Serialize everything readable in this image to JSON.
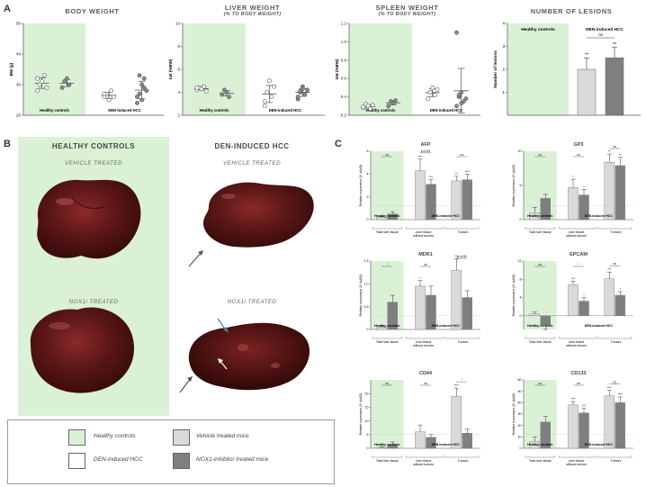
{
  "panels": {
    "a_label": "A",
    "b_label": "B",
    "c_label": "C"
  },
  "panel_a": {
    "body": {
      "title": "BODY WEIGHT",
      "ylabel": "BW (g)",
      "yticks": [
        "20",
        "30",
        "40",
        "50"
      ],
      "group1": "Healthy controls",
      "group2": "DEN-induced HCC"
    },
    "liver": {
      "title": "LIVER WEIGHT",
      "subtitle": "(% TO BODY WEIGHT)",
      "ylabel": "LW (%BW)",
      "yticks": [
        "2",
        "4",
        "6",
        "8",
        "10"
      ],
      "group1": "Healthy controls",
      "group2": "DEN-induced HCC"
    },
    "spleen": {
      "title": "SPLEEN WEIGHT",
      "subtitle": "(% TO BODY WEIGHT)",
      "ylabel": "SW (%BW)",
      "yticks": [
        "0.2",
        "0.4",
        "0.6",
        "0.8",
        "1.0",
        "1.2"
      ],
      "group1": "Healthy controls",
      "group2": "DEN-induced HCC"
    },
    "lesions": {
      "title": "NUMBER OF LESIONS",
      "ylabel": "Number of lesions",
      "yticks": [
        "1",
        "2",
        "3",
        "4"
      ],
      "group1": "Healthy controls",
      "group2": "DEN-induced HCC",
      "ns": "ns",
      "star": "**"
    }
  },
  "panel_b": {
    "col1_title": "HEALTHY CONTROLS",
    "col2_title": "DEN-INDUCED HCC",
    "vehicle": "VEHICLE TREATED",
    "noxi": "NOX1i TREATED"
  },
  "legend": {
    "healthy": "Healthy controls",
    "den": "DEN-induced HCC",
    "vehicle": "Vehicle treated mice",
    "nox": "NOX1-inhibitor treated mice",
    "colors": {
      "healthy": "#daf1d6",
      "den": "#ffffff",
      "vehicle": "#d9d9d9",
      "nox": "#7f7f7f"
    }
  },
  "panel_c": {
    "ylabel": "Relative expression (2^-ΔΔCt)",
    "hc_label": "Healthy controls",
    "den_label": "DEN-induced HCC",
    "x1": "Total liver tissue",
    "x2a": "Liver tissue",
    "x2b": "without tumors",
    "x3": "Tumors"
  },
  "chart_data": [
    {
      "type": "scatter",
      "title": "BODY WEIGHT",
      "ylabel": "BW (g)",
      "ylim": [
        20,
        50
      ],
      "series": [
        {
          "name": "Healthy controls vehicle",
          "values": [
            28,
            30,
            31,
            33,
            29,
            32
          ]
        },
        {
          "name": "Healthy controls NOX1i",
          "values": [
            29,
            31,
            32,
            30
          ]
        },
        {
          "name": "DEN-induced HCC vehicle",
          "values": [
            26,
            27,
            25,
            28,
            26,
            27
          ]
        },
        {
          "name": "DEN-induced HCC NOX1i",
          "values": [
            24,
            27,
            30,
            32,
            28,
            26,
            33,
            25,
            29
          ]
        }
      ]
    },
    {
      "type": "scatter",
      "title": "LIVER WEIGHT",
      "ylabel": "LW (%BW)",
      "ylim": [
        2,
        10
      ],
      "series": [
        {
          "name": "Healthy controls vehicle",
          "values": [
            4.2,
            4.4,
            4.3,
            4.5,
            4.1,
            4.4
          ]
        },
        {
          "name": "Healthy controls NOX1i",
          "values": [
            3.8,
            4.2,
            4.0,
            3.6
          ]
        },
        {
          "name": "DEN-induced HCC vehicle",
          "values": [
            3.2,
            4.0,
            5.0,
            3.6,
            4.5,
            2.8
          ]
        },
        {
          "name": "DEN-induced HCC NOX1i",
          "values": [
            3.4,
            4.0,
            4.5,
            3.8,
            4.2,
            3.6,
            4.1,
            4.3
          ]
        }
      ]
    },
    {
      "type": "scatter",
      "title": "SPLEEN WEIGHT",
      "ylabel": "SW (%BW)",
      "ylim": [
        0.2,
        1.2
      ],
      "series": [
        {
          "name": "Healthy controls vehicle",
          "values": [
            0.28,
            0.32,
            0.3,
            0.27,
            0.31,
            0.29
          ]
        },
        {
          "name": "Healthy controls NOX1i",
          "values": [
            0.3,
            0.35,
            0.33,
            0.36
          ]
        },
        {
          "name": "DEN-induced HCC vehicle",
          "values": [
            0.38,
            0.45,
            0.5,
            0.42,
            0.48
          ]
        },
        {
          "name": "DEN-induced HCC NOX1i",
          "values": [
            0.3,
            0.4,
            0.45,
            0.35,
            0.38,
            1.1,
            0.42,
            0.33
          ]
        }
      ]
    },
    {
      "type": "bar",
      "title": "NUMBER OF LESIONS",
      "ylabel": "Number of lesions",
      "ylim": [
        0,
        4
      ],
      "categories": [
        "Healthy controls",
        "DEN-induced HCC vehicle",
        "DEN-induced HCC NOX1i"
      ],
      "values": [
        0,
        2.0,
        2.5
      ],
      "errors": [
        0,
        0.5,
        0.45
      ]
    },
    {
      "type": "bar",
      "title": "AFP",
      "ylim": [
        0,
        6
      ],
      "ticks": [
        "0",
        "2",
        "4",
        "6"
      ],
      "values": [
        0.2,
        0.5,
        4.3,
        3.1,
        3.4,
        3.5
      ],
      "errors": [
        0.1,
        0.2,
        1.0,
        0.4,
        0.4,
        0.5
      ],
      "sig": [
        "ns",
        "p=0.09",
        "ns"
      ],
      "stars": [
        "",
        "",
        "****",
        "***",
        "**",
        "****"
      ]
    },
    {
      "type": "bar",
      "title": "GP3",
      "ylim": [
        0,
        10
      ],
      "ticks": [
        "0",
        "5",
        "10"
      ],
      "values": [
        1.0,
        3.1,
        4.7,
        3.6,
        8.4,
        7.9
      ],
      "errors": [
        0.8,
        0.6,
        1.2,
        0.8,
        1.2,
        1.2
      ],
      "sig": [
        "ns",
        "ns",
        "ns"
      ],
      "stars": [
        "",
        "",
        "*",
        "*",
        "**",
        "**"
      ]
    },
    {
      "type": "bar",
      "title": "MDR1",
      "ylim": [
        0,
        1.5
      ],
      "ticks": [
        "0",
        "0.5",
        "1.0",
        "1.5"
      ],
      "values": [
        0.05,
        0.6,
        0.95,
        0.75,
        1.3,
        0.7
      ],
      "errors": [
        0.03,
        0.15,
        0.12,
        0.2,
        0.25,
        0.15
      ],
      "sig": [
        "*",
        "ns",
        "p=0.05"
      ],
      "stars": [
        "",
        "",
        "*",
        "",
        "***",
        ""
      ]
    },
    {
      "type": "bar",
      "title": "EPCAM",
      "ylim": [
        -3,
        12
      ],
      "ticks": [
        "0",
        "4",
        "8",
        "12"
      ],
      "values": [
        0.4,
        -2.0,
        6.8,
        3.2,
        8.1,
        4.5
      ],
      "errors": [
        0.4,
        1.0,
        0.8,
        0.8,
        1.5,
        0.8
      ],
      "sig": [
        "ns",
        "*",
        "ns"
      ],
      "stars": [
        "",
        "",
        "***",
        "*",
        "***",
        "*"
      ]
    },
    {
      "type": "bar",
      "title": "CD44",
      "ylim": [
        0,
        25
      ],
      "ticks": [
        "0",
        "5",
        "10",
        "15",
        "20"
      ],
      "values": [
        0.3,
        1.3,
        6.0,
        4.0,
        19.0,
        5.5
      ],
      "errors": [
        0.3,
        1.0,
        2.5,
        1.0,
        3.0,
        1.5
      ],
      "sig": [
        "ns",
        "ns",
        "*"
      ],
      "stars": [
        "",
        "",
        "",
        "",
        "****",
        ""
      ]
    },
    {
      "type": "bar",
      "title": "CD133",
      "ylim": [
        0,
        60
      ],
      "ticks": [
        "0",
        "10",
        "20",
        "30",
        "40",
        "50",
        "60"
      ],
      "values": [
        6,
        23,
        38,
        31,
        46,
        40
      ],
      "errors": [
        4,
        5,
        3,
        4,
        5,
        5
      ],
      "sig": [
        "ns",
        "ns",
        "ns"
      ],
      "stars": [
        "",
        "",
        "****",
        "***",
        "****",
        "****"
      ]
    }
  ]
}
